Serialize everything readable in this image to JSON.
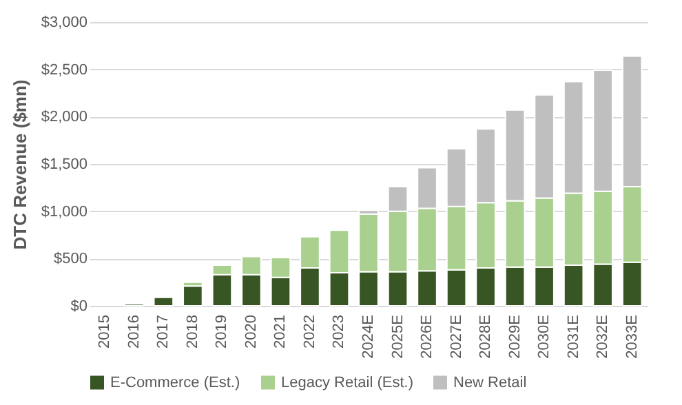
{
  "chart_data": {
    "type": "bar",
    "stacked": true,
    "ylabel": "DTC Revenue ($mn)",
    "categories": [
      "2015",
      "2016",
      "2017",
      "2018",
      "2019",
      "2020",
      "2021",
      "2022",
      "2023",
      "2024E",
      "2025E",
      "2026E",
      "2027E",
      "2028E",
      "2029E",
      "2030E",
      "2031E",
      "2032E",
      "2033E"
    ],
    "series": [
      {
        "name": "E-Commerce (Est.)",
        "color": "#375623",
        "values": [
          null,
          20,
          90,
          210,
          330,
          330,
          300,
          400,
          350,
          360,
          360,
          370,
          380,
          400,
          410,
          410,
          430,
          440,
          460
        ]
      },
      {
        "name": "Legacy Retail (Est.)",
        "color": "#a9d08e",
        "values": [
          null,
          null,
          null,
          40,
          100,
          190,
          210,
          330,
          450,
          610,
          640,
          660,
          670,
          690,
          700,
          730,
          760,
          770,
          800
        ]
      },
      {
        "name": "New Retail",
        "color": "#bfbfbf",
        "values": [
          null,
          null,
          null,
          null,
          null,
          null,
          null,
          null,
          null,
          40,
          260,
          430,
          610,
          780,
          960,
          1090,
          1180,
          1280,
          1380
        ]
      }
    ],
    "ylim": [
      0,
      3000
    ],
    "yticks": [
      {
        "value": 0,
        "label": "$0"
      },
      {
        "value": 500,
        "label": "$500"
      },
      {
        "value": 1000,
        "label": "$1,000"
      },
      {
        "value": 1500,
        "label": "$1,500"
      },
      {
        "value": 2000,
        "label": "$2,000"
      },
      {
        "value": 2500,
        "label": "$2,500"
      },
      {
        "value": 3000,
        "label": "$3,000"
      }
    ],
    "grid": "y",
    "legend": "bottom"
  }
}
